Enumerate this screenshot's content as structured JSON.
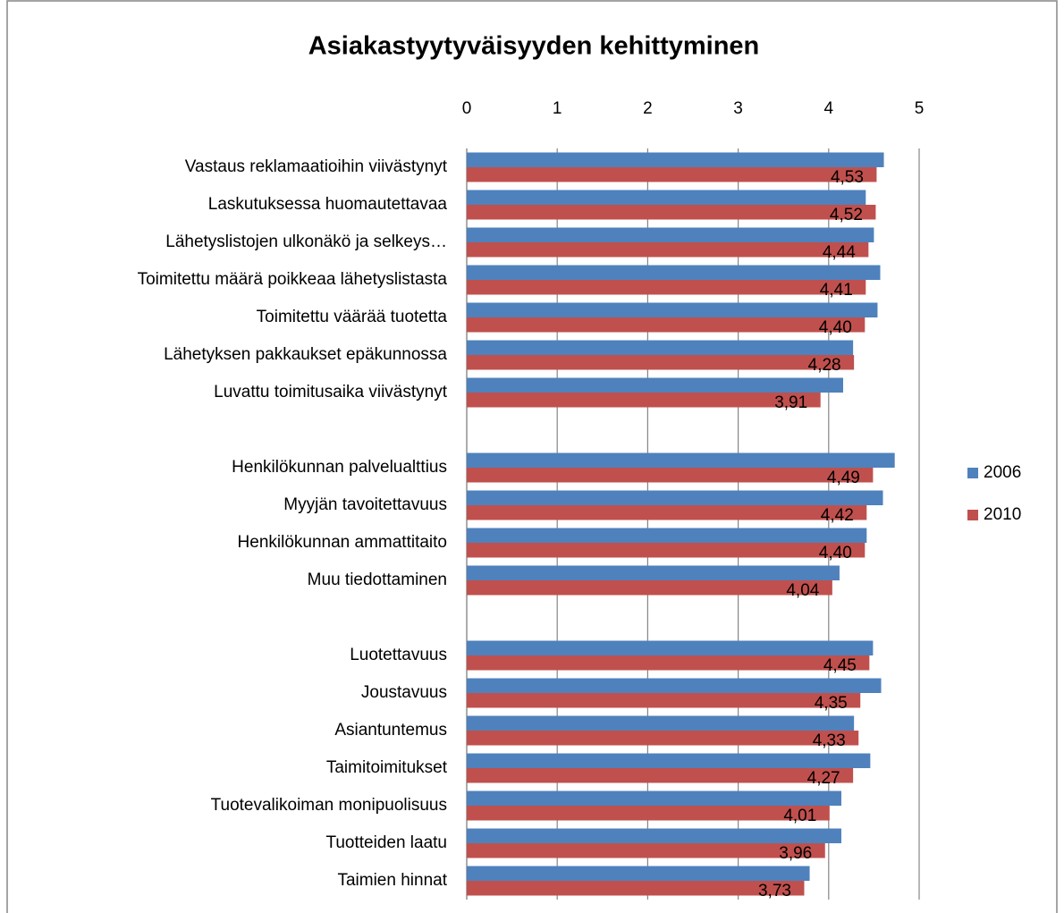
{
  "chart_data": {
    "type": "bar",
    "orientation": "horizontal",
    "title": "Asiakastyytyväisyyden kehittyminen",
    "categories": [
      "Vastaus reklamaatioihin viivästynyt",
      "Laskutuksessa huomautettavaa",
      "Lähetyslistojen ulkonäkö ja selkeys…",
      "Toimitettu määrä poikkeaa lähetyslistasta",
      "Toimitettu väärää tuotetta",
      "Lähetyksen pakkaukset epäkunnossa",
      "Luvattu toimitusaika viivästynyt",
      null,
      "Henkilökunnan palvelualttius",
      "Myyjän tavoitettavuus",
      "Henkilökunnan ammattitaito",
      "Muu tiedottaminen",
      null,
      "Luotettavuus",
      "Joustavuus",
      "Asiantuntemus",
      "Taimitoimitukset",
      "Tuotevalikoiman monipuolisuus",
      "Tuotteiden laatu",
      "Taimien hinnat"
    ],
    "series": [
      {
        "name": "2006",
        "color": "#4f81bd",
        "values": [
          4.61,
          4.41,
          4.5,
          4.57,
          4.54,
          4.27,
          4.16,
          null,
          4.73,
          4.6,
          4.42,
          4.12,
          null,
          4.49,
          4.58,
          4.28,
          4.46,
          4.14,
          4.14,
          3.79
        ]
      },
      {
        "name": "2010",
        "color": "#c0504d",
        "values": [
          4.53,
          4.52,
          4.44,
          4.41,
          4.4,
          4.28,
          3.91,
          null,
          4.49,
          4.42,
          4.4,
          4.04,
          null,
          4.45,
          4.35,
          4.33,
          4.27,
          4.01,
          3.96,
          3.73
        ],
        "value_labels": [
          "4,53",
          "4,52",
          "4,44",
          "4,41",
          "4,40",
          "4,28",
          "3,91",
          null,
          "4,49",
          "4,42",
          "4,40",
          "4,04",
          null,
          "4,45",
          "4,35",
          "4,33",
          "4,27",
          "4,01",
          "3,96",
          "3,73"
        ]
      }
    ],
    "xlim": [
      0,
      5
    ],
    "xticks": [
      0,
      1,
      2,
      3,
      4,
      5
    ],
    "grid": true,
    "legend": "right"
  }
}
